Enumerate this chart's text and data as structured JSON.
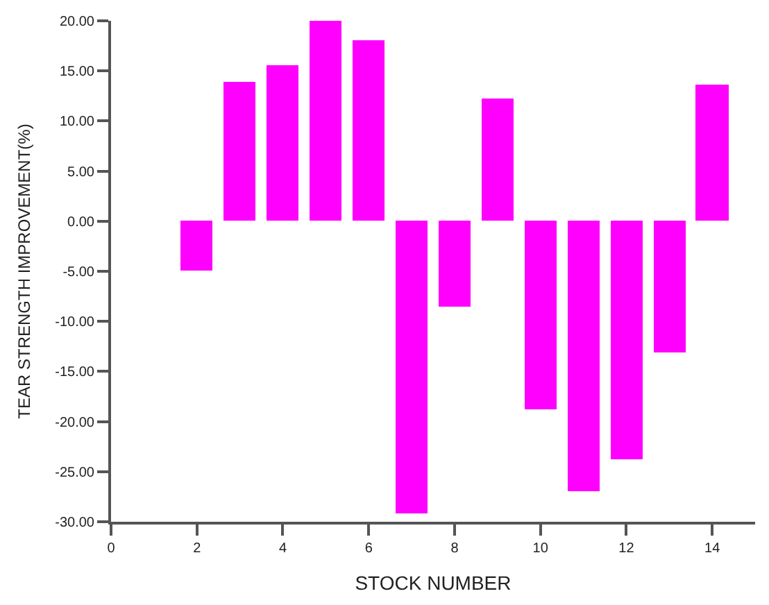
{
  "chart_data": {
    "type": "bar",
    "xlabel": "STOCK NUMBER",
    "ylabel": "TEAR STRENGTH IMPROVEMENT(%)",
    "x": [
      1,
      2,
      3,
      4,
      5,
      6,
      7,
      8,
      9,
      10,
      11,
      12,
      13,
      14
    ],
    "values": [
      0,
      -4.9,
      13.9,
      15.5,
      20.0,
      18.1,
      -29.2,
      -8.5,
      12.3,
      -18.8,
      -26.9,
      -23.7,
      -13.1,
      13.6
    ],
    "color": "#ff00ff",
    "xlim": [
      0,
      15
    ],
    "xticks": [
      0,
      2,
      4,
      6,
      8,
      10,
      12,
      14
    ],
    "ylim": [
      -30,
      20
    ],
    "yticks": [
      {
        "value": -30,
        "label": "-30.00"
      },
      {
        "value": -25,
        "label": "-25.00"
      },
      {
        "value": -20,
        "label": "-20.00"
      },
      {
        "value": -15,
        "label": "-15.00"
      },
      {
        "value": -10,
        "label": "-10.00"
      },
      {
        "value": -5,
        "label": "-5.00"
      },
      {
        "value": 0,
        "label": "0.00"
      },
      {
        "value": 5,
        "label": "5.00"
      },
      {
        "value": 10,
        "label": "10.00"
      },
      {
        "value": 15,
        "label": "15.00"
      },
      {
        "value": 20,
        "label": "20.00"
      }
    ],
    "legend": false
  }
}
